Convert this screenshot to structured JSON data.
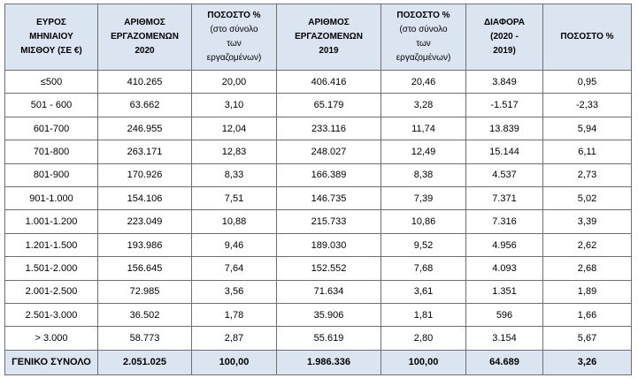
{
  "header": {
    "col0": [
      "ΕΥΡΟΣ",
      "ΜΗΝΙΑΙΟΥ",
      "ΜΙΣΘΟΥ (ΣΕ €)"
    ],
    "col1": [
      "ΑΡΙΘΜΟΣ",
      "ΕΡΓΑΖΟΜΕΝΩΝ",
      "2020"
    ],
    "col2": [
      "ΠΟΣΟΣΤΟ %",
      "(στο σύνολο",
      "των",
      "εργαζομένων)"
    ],
    "col3": [
      "ΑΡΙΘΜΟΣ",
      "ΕΡΓΑΖΟΜΕΝΩΝ",
      "2019"
    ],
    "col4": [
      "ΠΟΣΟΣΤΟ %",
      "(στο σύνολο",
      "των",
      "εργαζομένων)"
    ],
    "col5": [
      "ΔΙΑΦΟΡΑ",
      "(2020 -",
      "2019)"
    ],
    "col6": [
      "ΠΟΣΟΣΤΟ %"
    ]
  },
  "rows": [
    [
      "≤500",
      "410.265",
      "20,00",
      "406.416",
      "20,46",
      "3.849",
      "0,95"
    ],
    [
      "501 - 600",
      "63.662",
      "3,10",
      "65.179",
      "3,28",
      "-1.517",
      "-2,33"
    ],
    [
      "601-700",
      "246.955",
      "12,04",
      "233.116",
      "11,74",
      "13.839",
      "5,94"
    ],
    [
      "701-800",
      "263.171",
      "12,83",
      "248.027",
      "12,49",
      "15.144",
      "6,11"
    ],
    [
      "801-900",
      "170.926",
      "8,33",
      "166.389",
      "8,38",
      "4.537",
      "2,73"
    ],
    [
      "901-1.000",
      "154.106",
      "7,51",
      "146.735",
      "7,39",
      "7.371",
      "5,02"
    ],
    [
      "1.001-1.200",
      "223.049",
      "10,88",
      "215.733",
      "10,86",
      "7.316",
      "3,39"
    ],
    [
      "1.201-1.500",
      "193.986",
      "9,46",
      "189.030",
      "9,52",
      "4.956",
      "2,62"
    ],
    [
      "1.501-2.000",
      "156.645",
      "7,64",
      "152.552",
      "7,68",
      "4.093",
      "2,68"
    ],
    [
      "2.001-2.500",
      "72.985",
      "3,56",
      "71.634",
      "3,61",
      "1.351",
      "1,89"
    ],
    [
      "2.501-3.000",
      "36.502",
      "1,78",
      "35.906",
      "1,81",
      "596",
      "1,66"
    ],
    [
      "> 3.000",
      "58.773",
      "2,87",
      "55.619",
      "2,80",
      "3.154",
      "5,67"
    ]
  ],
  "total": [
    "ΓΕΝΙΚΟ ΣΥΝΟΛΟ",
    "2.051.025",
    "100,00",
    "1.986.336",
    "100,00",
    "64.689",
    "3,26"
  ],
  "colors": {
    "header_bg": "#dbe5f1",
    "border": "#6f6f6f"
  }
}
